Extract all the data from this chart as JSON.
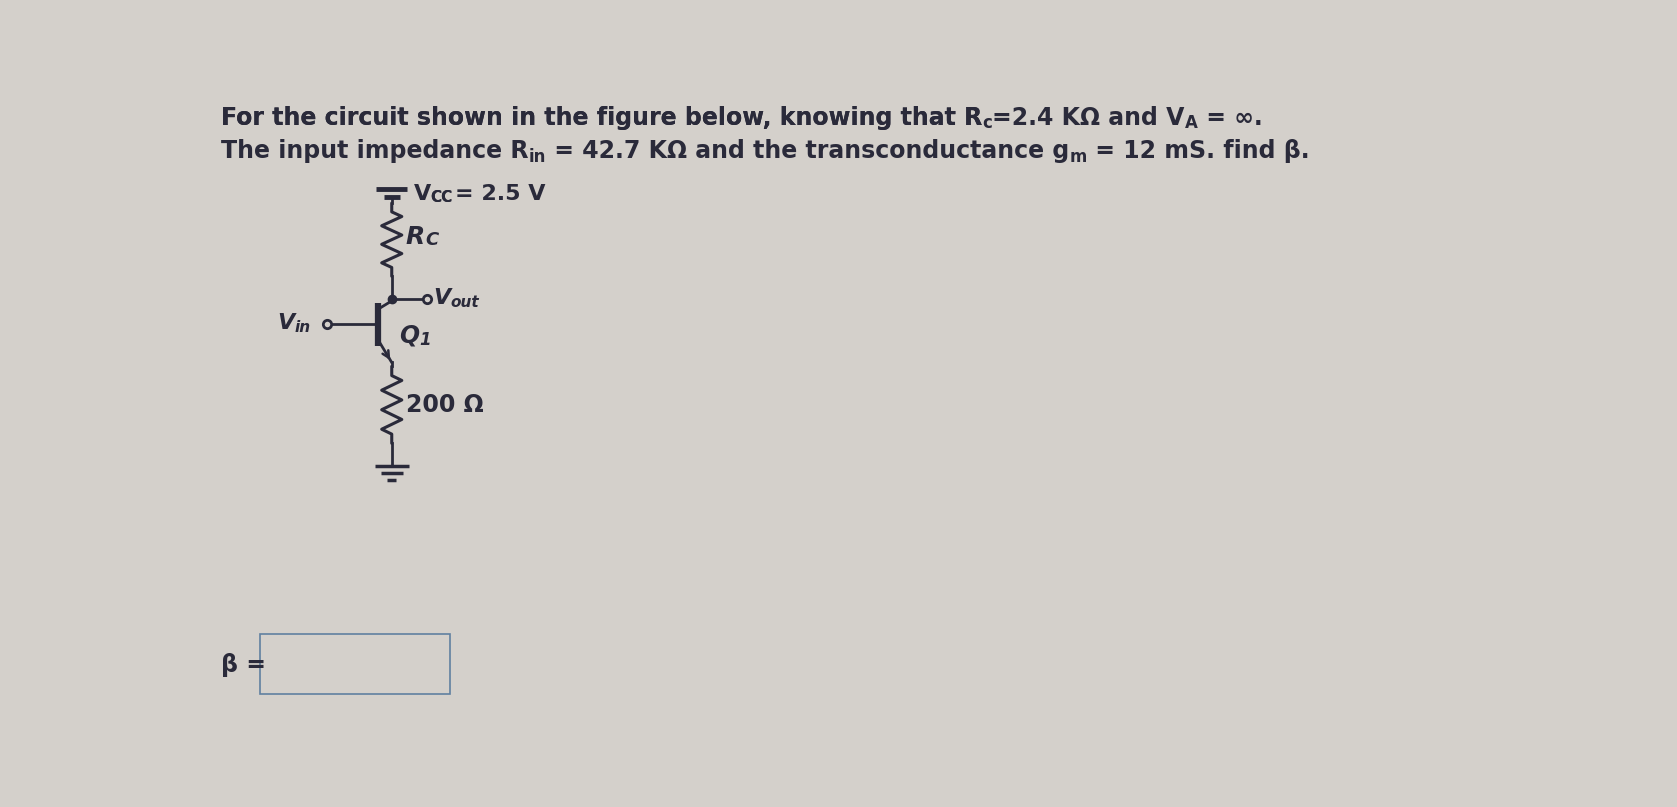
{
  "bg_color": "#d4d0cb",
  "text_color": "#2a2a3a",
  "box_color": "#c8c5bf",
  "line_color": "#2a2a3a",
  "font_size_title": 17,
  "font_size_circuit": 15,
  "font_size_sub": 11,
  "line1_parts": [
    {
      "text": "For the circuit shown in the figure below, knowing that R",
      "style": "normal",
      "sub": false
    },
    {
      "text": "c",
      "style": "normal",
      "sub": true
    },
    {
      "text": "=2.4 KΩ and V",
      "style": "normal",
      "sub": false
    },
    {
      "text": "A",
      "style": "normal",
      "sub": true
    },
    {
      "text": " = ∞.",
      "style": "normal",
      "sub": false
    }
  ],
  "line2_parts": [
    {
      "text": "The input impedance R",
      "style": "normal",
      "sub": false
    },
    {
      "text": "in",
      "style": "normal",
      "sub": true
    },
    {
      "text": " = 42.7 KΩ and the transconductance g",
      "style": "normal",
      "sub": false
    },
    {
      "text": "m",
      "style": "normal",
      "sub": true
    },
    {
      "text": " = 12 mS. find β.",
      "style": "normal",
      "sub": false
    }
  ],
  "vcc_text": "V",
  "vcc_sub": "CC",
  "vcc_val": "= 2.5 V",
  "rc_text": "R",
  "rc_sub": "C",
  "vout_text": "V",
  "vout_sub": "out",
  "vin_text": "V",
  "vin_sub": "in",
  "q1_text": "Q",
  "q1_sub": "1",
  "re_val": "200 Ω",
  "beta_label": "β ="
}
